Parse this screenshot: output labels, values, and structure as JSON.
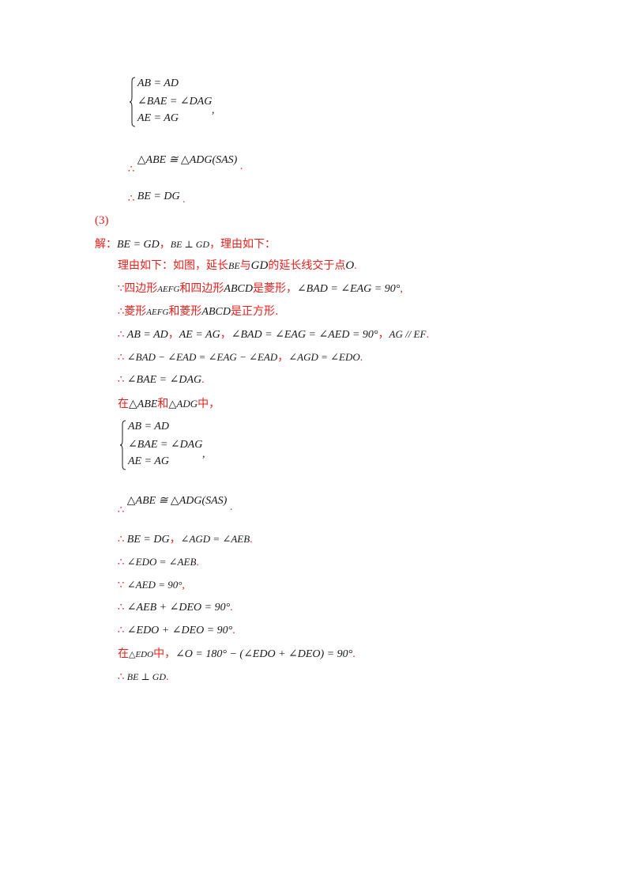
{
  "top": {
    "system1": {
      "r1": "AB = AD",
      "r2": "∠BAE = ∠DAG",
      "r3": "AE = AG",
      "trail": ","
    },
    "cong1": {
      "sym": "∴",
      "expr": "△ABE ≅ △ADG(SAS)",
      "end": "."
    },
    "eq1": {
      "sym": "∴",
      "expr": "BE = DG",
      "end": "."
    }
  },
  "part3": {
    "label": "(3)",
    "answer": {
      "prefix": "解：",
      "a": "BE = GD",
      "sep": "，",
      "b": "BE ⊥ GD",
      "suffix": "，理由如下："
    },
    "reason": {
      "t1": "理由如下：如图，延长",
      "m1": "BE",
      "t2": "与",
      "m2": "GD",
      "t3": "的延长线交于点",
      "m3": "O",
      "end": "."
    },
    "l1": {
      "sym": "∵",
      "t1": "四边形",
      "m1": "AEFG",
      "t2": "和四边形",
      "m2": "ABCD",
      "t3": "是菱形，",
      "m3": "∠BAD = ∠EAG = 90°",
      "end": ","
    },
    "l2": {
      "sym": "∴",
      "t1": "菱形",
      "m1": "AEFG",
      "t2": "和菱形",
      "m2": "ABCD",
      "t3": "是正方形."
    },
    "l3": {
      "sym": "∴",
      "m1": "AB = AD",
      "s1": "，",
      "m2": "AE = AG",
      "s2": "，",
      "m3": "∠BAD = ∠EAG = ∠AED = 90°",
      "s3": "，",
      "m4": "AG // EF",
      "end": "."
    },
    "l4": {
      "sym": "∴",
      "m1": "∠BAD − ∠EAD = ∠EAG − ∠EAD",
      "s1": "，",
      "m2": "∠AGD = ∠EDO",
      "end": "."
    },
    "l5": {
      "sym": "∴",
      "m1": "∠BAE = ∠DAG",
      "end": "."
    },
    "l6": {
      "t1": "在",
      "m1": "△ABE",
      "t2": "和",
      "m2": "△ADG",
      "t3": "中，"
    },
    "system2": {
      "r1": "AB = AD",
      "r2": "∠BAE = ∠DAG",
      "r3": "AE = AG",
      "trail": ","
    },
    "cong2": {
      "sym": "∴",
      "expr": "△ABE ≅ △ADG(SAS)",
      "end": "."
    },
    "l7": {
      "sym": "∴",
      "m1": "BE = DG",
      "s1": "，",
      "m2": "∠AGD = ∠AEB",
      "end": "."
    },
    "l8": {
      "sym": "∴",
      "m1": "∠EDO = ∠AEB",
      "end": "."
    },
    "l9": {
      "sym": "∵",
      "m1": "∠AED = 90°",
      "end": ","
    },
    "l10": {
      "sym": "∴",
      "m1": "∠AEB + ∠DEO = 90°",
      "end": "."
    },
    "l11": {
      "sym": "∴",
      "m1": "∠EDO + ∠DEO = 90°",
      "end": "."
    },
    "l12": {
      "t1": "在",
      "m1": "△EDO",
      "t2": "中，",
      "m2": "∠O = 180° − (∠EDO + ∠DEO) = 90°",
      "end": "."
    },
    "l13": {
      "sym": "∴",
      "m1": "BE ⊥ GD",
      "end": "."
    }
  }
}
